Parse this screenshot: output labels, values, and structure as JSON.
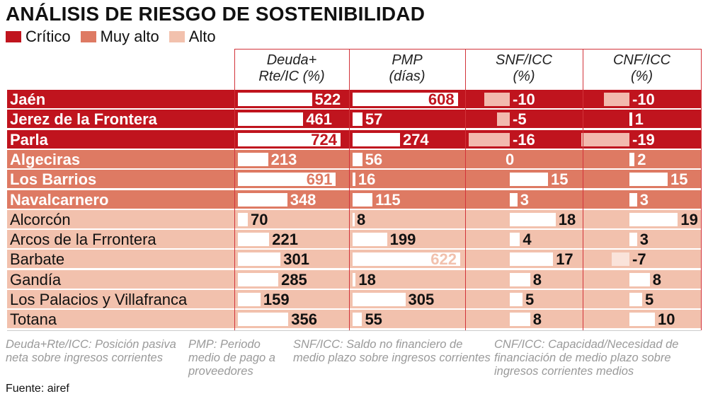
{
  "title": "ANÁLISIS DE RIESGO DE SOSTENIBILIDAD",
  "legend": [
    {
      "label": "Crítico",
      "color": "#c0141e"
    },
    {
      "label": "Muy alto",
      "color": "#de7a63"
    },
    {
      "label": "Alto",
      "color": "#f2c1ad"
    }
  ],
  "columns": [
    {
      "line1": "Deuda+",
      "line2": "Rte/IC (%)"
    },
    {
      "line1": "PMP",
      "line2": "(días)"
    },
    {
      "line1": "SNF/ICC",
      "line2": "(%)"
    },
    {
      "line1": "CNF/ICC",
      "line2": "(%)"
    }
  ],
  "footnotes": [
    "Deuda+Rte/ICC: Posición pasiva neta sobre ingresos corrientes",
    "PMP: Periodo medio de pago a proveedores",
    "SNF/ICC: Saldo no financiero de medio plazo sobre ingresos corrientes",
    "CNF/ICC: Capacidad/Necesidad de financiación de medio plazo sobre ingresos corrientes medios"
  ],
  "source": "Fuente: airef",
  "chart_data": {
    "type": "table",
    "title": "ANÁLISIS DE RIESGO DE SOSTENIBILIDAD",
    "series": [
      "Deuda+Rte/IC (%)",
      "PMP (días)",
      "SNF/ICC (%)",
      "CNF/ICC (%)"
    ],
    "rows": [
      {
        "name": "Jaén",
        "level": "Crítico",
        "values": [
          522,
          608,
          -10,
          -10
        ]
      },
      {
        "name": "Jerez de la Frontera",
        "level": "Crítico",
        "values": [
          461,
          57,
          -5,
          1
        ]
      },
      {
        "name": "Parla",
        "level": "Crítico",
        "values": [
          724,
          274,
          -16,
          -19
        ]
      },
      {
        "name": "Algeciras",
        "level": "Muy alto",
        "values": [
          213,
          56,
          0,
          2
        ]
      },
      {
        "name": "Los Barrios",
        "level": "Muy alto",
        "values": [
          691,
          16,
          15,
          15
        ]
      },
      {
        "name": "Navalcarnero",
        "level": "Muy alto",
        "values": [
          348,
          115,
          3,
          3
        ]
      },
      {
        "name": "Alcorcón",
        "level": "Alto",
        "values": [
          70,
          8,
          18,
          19
        ]
      },
      {
        "name": "Arcos de la Frrontera",
        "level": "Alto",
        "values": [
          221,
          199,
          4,
          3
        ]
      },
      {
        "name": "Barbate",
        "level": "Alto",
        "values": [
          301,
          622,
          17,
          -7
        ]
      },
      {
        "name": "Gandía",
        "level": "Alto",
        "values": [
          285,
          18,
          8,
          8
        ]
      },
      {
        "name": "Los Palacios y Villafranca",
        "level": "Alto",
        "values": [
          159,
          305,
          5,
          5
        ]
      },
      {
        "name": "Totana",
        "level": "Alto",
        "values": [
          356,
          55,
          8,
          10
        ]
      }
    ]
  }
}
